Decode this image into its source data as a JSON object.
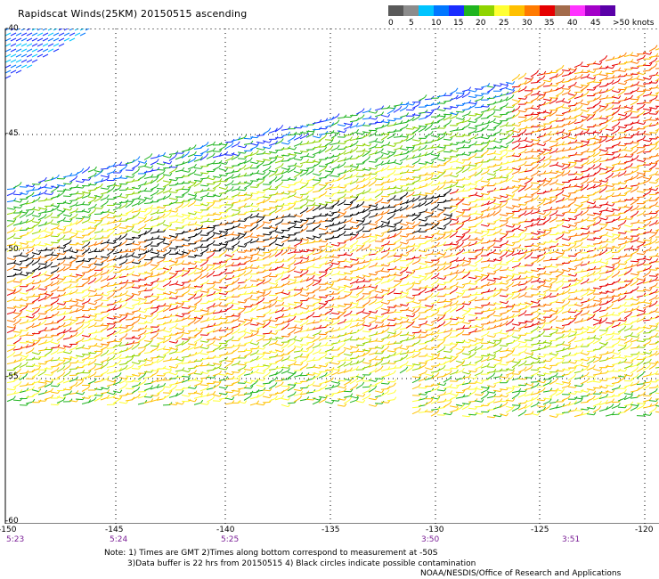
{
  "title": "Rapidscat Winds(25KM) 20150515 ascending",
  "legend": {
    "labels": [
      "0",
      "5",
      "10",
      "15",
      "20",
      "25",
      "30",
      "35",
      "40",
      "45",
      ">50 knots"
    ],
    "colors": [
      "#595959",
      "#8c8c8c",
      "#00c4ff",
      "#0077ff",
      "#1a2dff",
      "#1fb41f",
      "#8fd400",
      "#ffff33",
      "#ffc000",
      "#ff7a00",
      "#e60000",
      "#a36b4b",
      "#ff33ff",
      "#a300c8",
      "#5a00a8"
    ]
  },
  "map": {
    "lat_labels": [
      "-40",
      "-45",
      "-50",
      "-55",
      "-60"
    ],
    "lon_labels": [
      "-150",
      "-145",
      "-140",
      "-135",
      "-130",
      "-125",
      "-120"
    ],
    "time_labels": [
      "5:23",
      "5:24",
      "5:25",
      "3:50",
      "3:51"
    ]
  },
  "footer": {
    "note_line1": "Note: 1) Times are GMT 2)Times along bottom correspond to measurement at -50S",
    "note_line2": "3)Data buffer is 22 hrs from 20150515 4) Black circles indicate possible contamination",
    "credit": "NOAA/NESDIS/Office of Research and Applications"
  }
}
